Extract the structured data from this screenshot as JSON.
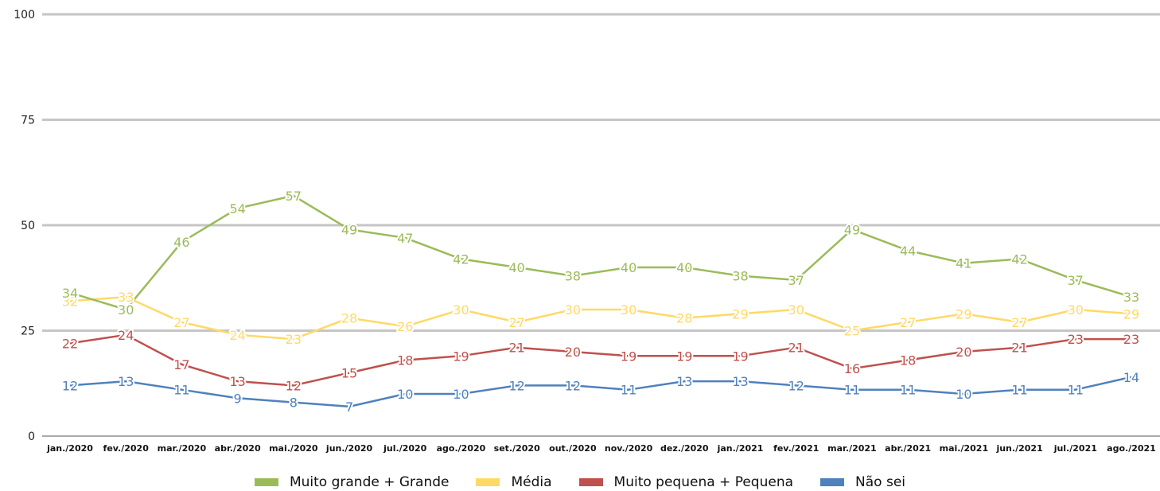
{
  "chart_data": {
    "type": "line",
    "title": "",
    "xlabel": "",
    "ylabel": "",
    "ylim": [
      0,
      100
    ],
    "yticks": [
      "0",
      "25",
      "50",
      "75",
      "100"
    ],
    "grid": true,
    "legend_position": "bottom",
    "categories": [
      "jan./2020",
      "fev./2020",
      "mar./2020",
      "abr./2020",
      "mai./2020",
      "jun./2020",
      "jul./2020",
      "ago./2020",
      "set./2020",
      "out./2020",
      "nov./2020",
      "dez./2020",
      "jan./2021",
      "fev./2021",
      "mar./2021",
      "abr./2021",
      "mai./2021",
      "jun./2021",
      "jul./2021",
      "ago./2021"
    ],
    "series": [
      {
        "name": "Muito grande + Grande",
        "color": "#9bbb59",
        "values": [
          34,
          30,
          46,
          54,
          57,
          49,
          47,
          42,
          40,
          38,
          40,
          40,
          38,
          37,
          49,
          44,
          41,
          42,
          37,
          33
        ]
      },
      {
        "name": "Média",
        "color": "#ffd966",
        "values": [
          32,
          33,
          27,
          24,
          23,
          28,
          26,
          30,
          27,
          30,
          30,
          28,
          29,
          30,
          25,
          27,
          29,
          27,
          30,
          29
        ]
      },
      {
        "name": "Muito pequena + Pequena",
        "color": "#c0504d",
        "values": [
          22,
          24,
          17,
          13,
          12,
          15,
          18,
          19,
          21,
          20,
          19,
          19,
          19,
          21,
          16,
          18,
          20,
          21,
          23,
          23
        ]
      },
      {
        "name": "Não sei",
        "color": "#4f81bd",
        "values": [
          12,
          13,
          11,
          9,
          8,
          7,
          10,
          10,
          12,
          12,
          11,
          13,
          13,
          12,
          11,
          11,
          10,
          11,
          11,
          14
        ]
      }
    ]
  }
}
